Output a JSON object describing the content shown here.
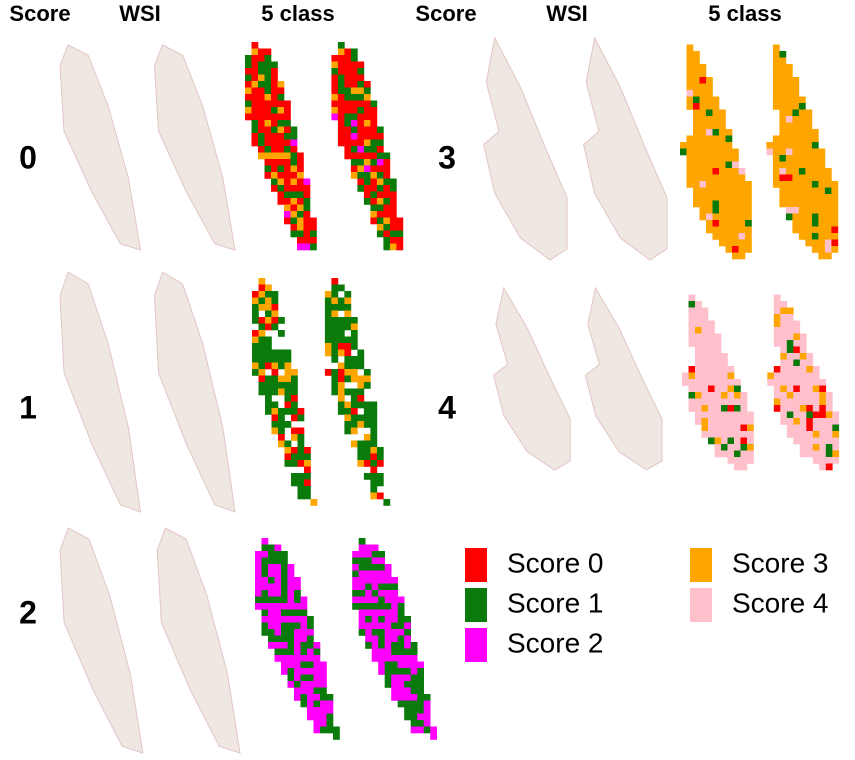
{
  "headers": [
    "Score",
    "WSI",
    "5 class",
    "Score",
    "WSI",
    "5 class"
  ],
  "rows": [
    {
      "label": "0"
    },
    {
      "label": "1"
    },
    {
      "label": "2"
    },
    {
      "label": "3"
    },
    {
      "label": "4"
    }
  ],
  "legend": [
    {
      "label": "Score 0",
      "color": "#ff0000"
    },
    {
      "label": "Score 1",
      "color": "#0a7a0a"
    },
    {
      "label": "Score 2",
      "color": "#ff00ff"
    },
    {
      "label": "Score 3",
      "color": "#ffa500"
    },
    {
      "label": "Score 4",
      "color": "#ffc0cb"
    }
  ]
}
